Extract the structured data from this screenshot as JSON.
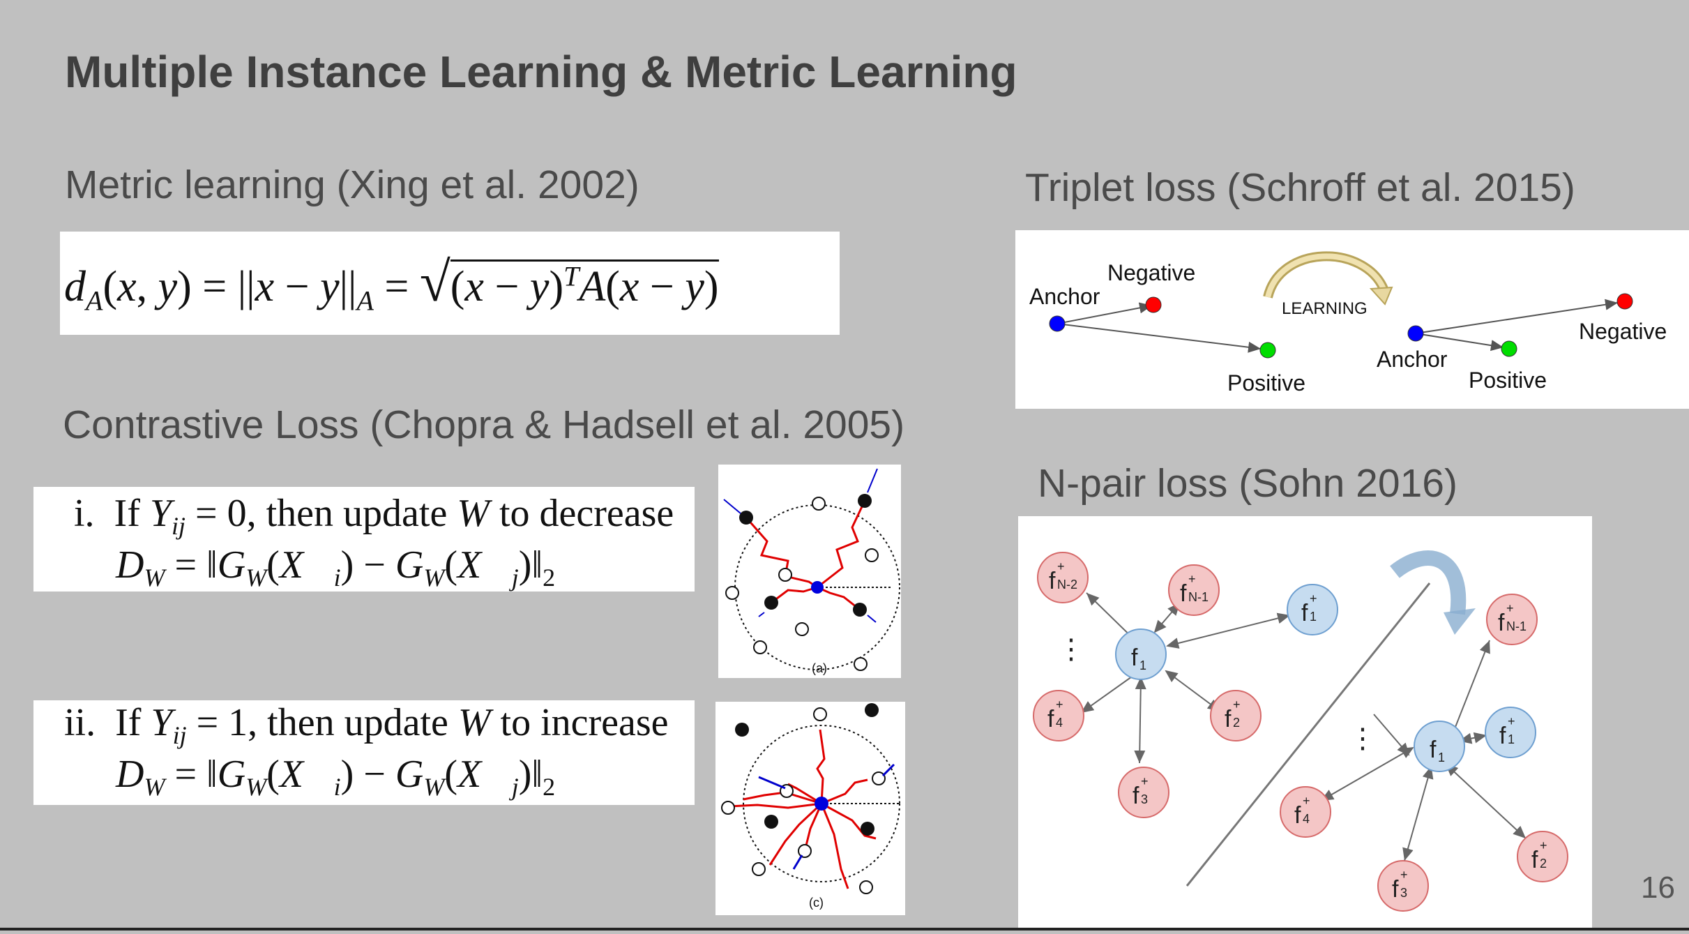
{
  "slide": {
    "title": "Multiple Instance Learning & Metric Learning",
    "page_number": "16"
  },
  "metric_learning": {
    "heading": "Metric learning (Xing et al. 2002)",
    "equation": "d_A(x, y) = ||x − y||_A = √((x − y)^T A(x − y))"
  },
  "contrastive_loss": {
    "heading": "Contrastive Loss (Chopra & Hadsell et al. 2005)",
    "rule_i": {
      "numeral": "i.",
      "text": "If Y_ij = 0, then update W to decrease",
      "formula": "D_W = ‖G_W(X_i) − G_W(X_j)‖_2"
    },
    "rule_ii": {
      "numeral": "ii.",
      "text": "If Y_ij = 1, then update W to increase",
      "formula": "D_W = ‖G_W(X_i) − G_W(X_j)‖_2"
    },
    "figure_a_caption": "(a)",
    "figure_c_caption": "(c)"
  },
  "triplet_loss": {
    "heading": "Triplet loss (Schroff et al. 2015)",
    "labels": {
      "anchor_before": "Anchor",
      "negative_before": "Negative",
      "positive_before": "Positive",
      "learning": "LEARNING",
      "anchor_after": "Anchor",
      "positive_after": "Positive",
      "negative_after": "Negative"
    },
    "colors": {
      "anchor": "#0000ff",
      "negative": "#ff0000",
      "positive": "#00dd00"
    }
  },
  "npair_loss": {
    "heading": "N-pair loss (Sohn 2016)",
    "left_nodes": [
      "f",
      "f",
      "f",
      "f",
      "f",
      "f",
      "f"
    ],
    "colors": {
      "anchor_fill": "#c6dcf0",
      "anchor_stroke": "#6e9fd0",
      "other_fill": "#f4c6c6",
      "other_stroke": "#d66a6a",
      "arrow": "#8aaed0"
    }
  }
}
